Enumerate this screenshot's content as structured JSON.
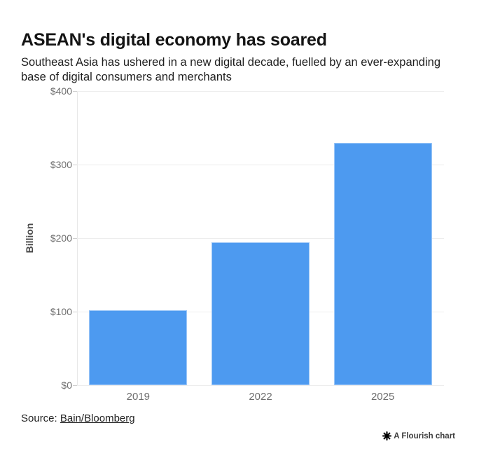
{
  "header": {
    "title": "ASEAN's digital economy has soared",
    "subtitle": "Southeast Asia has ushered in a new digital decade, fuelled by an ever-expanding base of digital consumers and merchants"
  },
  "chart_data": {
    "type": "bar",
    "categories": [
      "2019",
      "2022",
      "2025"
    ],
    "values": [
      102,
      194,
      330
    ],
    "title": "ASEAN's digital economy has soared",
    "xlabel": "",
    "ylabel": "Billion",
    "ylim": [
      0,
      400
    ],
    "ytick_step": 100,
    "ytick_labels": [
      "$0",
      "$100",
      "$200",
      "$300",
      "$400"
    ],
    "grid": true,
    "legend": "none",
    "bar_color": "#4D9AF0"
  },
  "footer": {
    "source_prefix": "Source:",
    "source_link": "Bain/Bloomberg",
    "badge_label": "A Flourish chart",
    "badge_icon": "flourish-starburst-icon",
    "badge_icon_color": "#000000"
  }
}
